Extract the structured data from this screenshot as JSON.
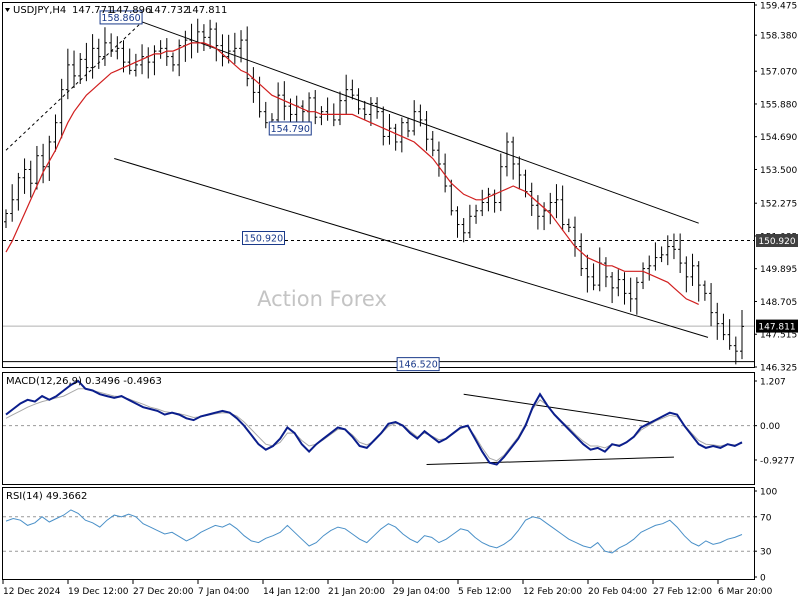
{
  "chart_data": {
    "type": "ohlc",
    "symbol": "USDJPY,H4",
    "header_ohlc": [
      "147.771",
      "147.896",
      "147.732",
      "147.811"
    ],
    "watermark": "Action Forex",
    "colors": {
      "price": "#000000",
      "ma": "#d11f1f",
      "macd": "#0b1e8c",
      "signal": "#a8a8a8",
      "rsi": "#4a90c8",
      "current_price_bg": "#000000",
      "hline_label_bg": "#404040"
    },
    "x_tick_labels": [
      "12 Dec 2024",
      "19 Dec 12:00",
      "27 Dec 20:00",
      "7 Jan 04:00",
      "14 Jan 12:00",
      "21 Jan 20:00",
      "29 Jan 04:00",
      "5 Feb 12:00",
      "12 Feb 20:00",
      "20 Feb 04:00",
      "27 Feb 12:00",
      "6 Mar 20:00"
    ],
    "price_panel": {
      "ylim": [
        146.325,
        159.475
      ],
      "y_ticks": [
        "159.475",
        "158.380",
        "157.070",
        "155.880",
        "154.690",
        "153.500",
        "152.275",
        "151.085",
        "149.895",
        "148.705",
        "147.515",
        "146.325"
      ],
      "close_series": [
        151.9,
        152.4,
        153.2,
        153.5,
        153.0,
        154.0,
        153.6,
        154.5,
        155.2,
        156.4,
        157.3,
        156.9,
        157.5,
        157.2,
        157.9,
        157.6,
        158.1,
        157.8,
        157.9,
        157.4,
        157.1,
        157.3,
        157.6,
        157.4,
        157.8,
        157.9,
        157.6,
        157.3,
        158.0,
        158.2,
        158.1,
        158.5,
        158.3,
        158.6,
        158.0,
        157.6,
        157.8,
        157.9,
        158.2,
        156.8,
        156.3,
        155.6,
        155.2,
        155.3,
        156.2,
        155.8,
        155.5,
        155.8,
        155.6,
        156.1,
        155.4,
        155.6,
        155.5,
        155.3,
        156.0,
        156.4,
        156.2,
        155.7,
        155.5,
        155.9,
        155.6,
        154.7,
        155.0,
        154.5,
        155.2,
        154.9,
        155.6,
        155.3,
        154.6,
        154.2,
        153.7,
        152.9,
        152.0,
        151.5,
        151.2,
        151.8,
        152.0,
        152.3,
        152.6,
        152.3,
        153.6,
        154.5,
        153.7,
        153.3,
        152.7,
        152.2,
        151.8,
        152.0,
        152.3,
        152.4,
        151.5,
        151.4,
        150.7,
        149.9,
        149.6,
        149.3,
        150.1,
        149.6,
        149.2,
        149.5,
        149.0,
        148.8,
        149.4,
        149.9,
        150.0,
        150.3,
        150.4,
        150.7,
        150.6,
        150.1,
        149.6,
        150.0,
        149.3,
        149.0,
        148.3,
        147.9,
        147.5,
        147.1,
        146.9,
        147.8
      ],
      "ma_series": [
        150.5,
        150.9,
        151.4,
        151.9,
        152.4,
        152.9,
        153.4,
        153.8,
        154.2,
        154.7,
        155.2,
        155.6,
        155.9,
        156.2,
        156.4,
        156.6,
        156.8,
        157.0,
        157.1,
        157.2,
        157.3,
        157.4,
        157.5,
        157.6,
        157.7,
        157.7,
        157.8,
        157.8,
        157.9,
        158.0,
        158.1,
        158.1,
        158.1,
        158.0,
        157.9,
        157.7,
        157.5,
        157.3,
        157.1,
        157.0,
        156.8,
        156.6,
        156.4,
        156.2,
        156.1,
        156.0,
        155.9,
        155.8,
        155.7,
        155.6,
        155.6,
        155.5,
        155.5,
        155.5,
        155.5,
        155.5,
        155.5,
        155.4,
        155.3,
        155.2,
        155.1,
        155.0,
        154.9,
        154.8,
        154.7,
        154.6,
        154.5,
        154.3,
        154.1,
        153.9,
        153.6,
        153.3,
        153.0,
        152.8,
        152.6,
        152.5,
        152.4,
        152.4,
        152.5,
        152.6,
        152.7,
        152.8,
        152.9,
        152.8,
        152.7,
        152.5,
        152.3,
        152.1,
        151.9,
        151.6,
        151.3,
        151.0,
        150.7,
        150.5,
        150.3,
        150.2,
        150.1,
        150.0,
        150.0,
        149.9,
        149.8,
        149.8,
        149.8,
        149.8,
        149.7,
        149.6,
        149.5,
        149.4,
        149.2,
        149.0,
        148.8,
        148.7,
        148.6
      ],
      "channel_upper": [
        [
          22,
          158.86
        ],
        [
          112,
          151.55
        ]
      ],
      "channel_lower": [
        [
          17.5,
          153.9
        ],
        [
          113.5,
          147.4
        ]
      ],
      "dashed_trend": [
        [
          0,
          154.2
        ],
        [
          22,
          158.86
        ]
      ],
      "hlines": [
        {
          "value": 150.92,
          "label": "150.920",
          "style": "dashed"
        },
        {
          "value": 146.52,
          "style": "solid"
        },
        {
          "value": 147.811,
          "style": "solid-gray"
        }
      ],
      "callouts": [
        {
          "label": "158.860",
          "i": 22,
          "value": 158.86
        },
        {
          "label": "154.790",
          "i": 50,
          "value": 154.79
        },
        {
          "label": "150.920",
          "i": 46,
          "value": 150.92
        },
        {
          "label": "146.520",
          "i": 71,
          "value": 146.52
        }
      ],
      "axis_badges": [
        {
          "label": "150.920",
          "value": 150.92,
          "style": "gray"
        },
        {
          "label": "147.811",
          "value": 147.811,
          "style": "black"
        }
      ]
    },
    "macd_panel": {
      "label": "MACD(12,26,9) 0.3496 -0.4963",
      "ylim": [
        -1.55,
        1.207
      ],
      "y_ticks": [
        "1.207",
        "0.00",
        "-0.9277"
      ],
      "macd_series": [
        0.3,
        0.45,
        0.6,
        0.7,
        0.65,
        0.8,
        0.7,
        0.8,
        0.95,
        1.1,
        1.207,
        1.0,
        0.95,
        0.85,
        0.8,
        0.75,
        0.8,
        0.7,
        0.6,
        0.5,
        0.45,
        0.4,
        0.3,
        0.35,
        0.3,
        0.2,
        0.15,
        0.25,
        0.3,
        0.35,
        0.4,
        0.35,
        0.2,
        0.0,
        -0.25,
        -0.5,
        -0.65,
        -0.55,
        -0.35,
        -0.05,
        -0.2,
        -0.5,
        -0.7,
        -0.5,
        -0.35,
        -0.2,
        -0.05,
        -0.1,
        -0.3,
        -0.55,
        -0.6,
        -0.4,
        -0.2,
        0.05,
        0.1,
        0.0,
        -0.2,
        -0.35,
        -0.15,
        -0.3,
        -0.45,
        -0.35,
        -0.2,
        -0.05,
        0.0,
        -0.35,
        -0.7,
        -1.0,
        -1.05,
        -0.85,
        -0.6,
        -0.35,
        0.0,
        0.5,
        0.85,
        0.55,
        0.3,
        0.1,
        -0.1,
        -0.3,
        -0.5,
        -0.65,
        -0.6,
        -0.7,
        -0.5,
        -0.55,
        -0.45,
        -0.3,
        -0.05,
        0.05,
        0.15,
        0.25,
        0.35,
        0.3,
        0.0,
        -0.25,
        -0.5,
        -0.6,
        -0.55,
        -0.6,
        -0.5,
        -0.55,
        -0.45
      ],
      "signal_series": [
        0.2,
        0.3,
        0.4,
        0.5,
        0.58,
        0.65,
        0.7,
        0.75,
        0.8,
        0.9,
        1.0,
        1.0,
        0.95,
        0.9,
        0.85,
        0.8,
        0.78,
        0.72,
        0.65,
        0.58,
        0.5,
        0.45,
        0.38,
        0.35,
        0.32,
        0.28,
        0.22,
        0.24,
        0.28,
        0.32,
        0.35,
        0.34,
        0.26,
        0.1,
        -0.1,
        -0.3,
        -0.5,
        -0.55,
        -0.45,
        -0.2,
        -0.2,
        -0.4,
        -0.55,
        -0.5,
        -0.38,
        -0.24,
        -0.1,
        -0.1,
        -0.25,
        -0.45,
        -0.52,
        -0.42,
        -0.22,
        -0.02,
        0.06,
        0.02,
        -0.15,
        -0.3,
        -0.2,
        -0.28,
        -0.38,
        -0.35,
        -0.22,
        -0.08,
        -0.02,
        -0.28,
        -0.6,
        -0.88,
        -0.95,
        -0.8,
        -0.55,
        -0.3,
        0.05,
        0.45,
        0.7,
        0.55,
        0.32,
        0.12,
        -0.05,
        -0.25,
        -0.42,
        -0.55,
        -0.55,
        -0.6,
        -0.5,
        -0.52,
        -0.45,
        -0.32,
        -0.12,
        0.0,
        0.12,
        0.2,
        0.28,
        0.24,
        0.02,
        -0.2,
        -0.4,
        -0.5,
        -0.52,
        -0.55,
        -0.5,
        -0.52,
        -0.48
      ],
      "trend_upper": [
        [
          74,
          0.85
        ],
        [
          104,
          0.1
        ]
      ],
      "trend_lower": [
        [
          68,
          -1.05
        ],
        [
          108,
          -0.85
        ]
      ]
    },
    "rsi_panel": {
      "label": "RSI(14) 49.3662",
      "ylim": [
        0,
        100
      ],
      "y_ticks": [
        "100",
        "70",
        "30",
        "0"
      ],
      "levels": [
        70,
        30
      ],
      "rsi_series": [
        65,
        68,
        66,
        60,
        63,
        70,
        64,
        68,
        72,
        78,
        74,
        66,
        63,
        58,
        66,
        72,
        70,
        73,
        70,
        62,
        58,
        54,
        50,
        52,
        47,
        42,
        46,
        52,
        56,
        60,
        58,
        62,
        56,
        48,
        42,
        40,
        45,
        48,
        52,
        60,
        52,
        44,
        36,
        40,
        48,
        54,
        58,
        56,
        50,
        44,
        40,
        48,
        56,
        62,
        58,
        50,
        44,
        40,
        48,
        46,
        40,
        44,
        50,
        56,
        54,
        46,
        40,
        36,
        34,
        38,
        44,
        54,
        66,
        70,
        68,
        62,
        56,
        50,
        44,
        40,
        36,
        34,
        40,
        30,
        28,
        34,
        38,
        44,
        52,
        56,
        60,
        62,
        66,
        58,
        48,
        40,
        36,
        42,
        38,
        40,
        44,
        46,
        49.37
      ]
    }
  }
}
